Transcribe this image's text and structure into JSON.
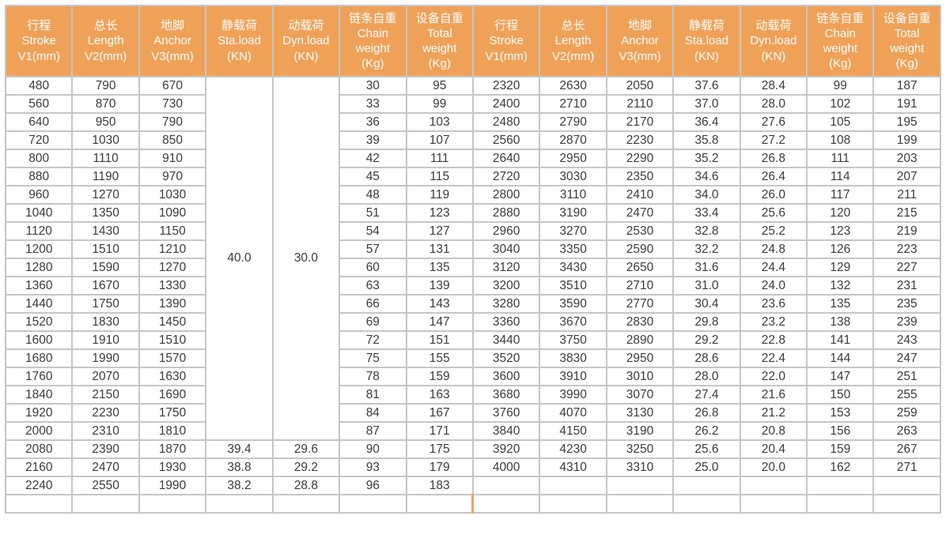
{
  "table": {
    "header_columns": [
      {
        "lines": [
          "行程",
          "Stroke",
          "V1(mm)"
        ]
      },
      {
        "lines": [
          "总长",
          "Length",
          "V2(mm)"
        ]
      },
      {
        "lines": [
          "地脚",
          "Anchor",
          "V3(mm)"
        ]
      },
      {
        "lines": [
          "静载荷",
          "Sta.load",
          "(KN)"
        ]
      },
      {
        "lines": [
          "动载荷",
          "Dyn.load",
          "(KN)"
        ]
      },
      {
        "lines": [
          "链条自重",
          "Chain",
          "weight",
          "(Kg)"
        ]
      },
      {
        "lines": [
          "设备自重",
          "Total",
          "weight",
          "(Kg)"
        ]
      }
    ],
    "header_repeated_twice": true,
    "left_half": {
      "merged_sta_load": "40.0",
      "merged_dyn_load": "30.0",
      "merged_rowspan": 20,
      "rows": [
        [
          "480",
          "790",
          "670",
          null,
          null,
          "30",
          "95"
        ],
        [
          "560",
          "870",
          "730",
          null,
          null,
          "33",
          "99"
        ],
        [
          "640",
          "950",
          "790",
          null,
          null,
          "36",
          "103"
        ],
        [
          "720",
          "1030",
          "850",
          null,
          null,
          "39",
          "107"
        ],
        [
          "800",
          "1110",
          "910",
          null,
          null,
          "42",
          "111"
        ],
        [
          "880",
          "1190",
          "970",
          null,
          null,
          "45",
          "115"
        ],
        [
          "960",
          "1270",
          "1030",
          null,
          null,
          "48",
          "119"
        ],
        [
          "1040",
          "1350",
          "1090",
          null,
          null,
          "51",
          "123"
        ],
        [
          "1120",
          "1430",
          "1150",
          null,
          null,
          "54",
          "127"
        ],
        [
          "1200",
          "1510",
          "1210",
          null,
          null,
          "57",
          "131"
        ],
        [
          "1280",
          "1590",
          "1270",
          null,
          null,
          "60",
          "135"
        ],
        [
          "1360",
          "1670",
          "1330",
          null,
          null,
          "63",
          "139"
        ],
        [
          "1440",
          "1750",
          "1390",
          null,
          null,
          "66",
          "143"
        ],
        [
          "1520",
          "1830",
          "1450",
          null,
          null,
          "69",
          "147"
        ],
        [
          "1600",
          "1910",
          "1510",
          null,
          null,
          "72",
          "151"
        ],
        [
          "1680",
          "1990",
          "1570",
          null,
          null,
          "75",
          "155"
        ],
        [
          "1760",
          "2070",
          "1630",
          null,
          null,
          "78",
          "159"
        ],
        [
          "1840",
          "2150",
          "1690",
          null,
          null,
          "81",
          "163"
        ],
        [
          "1920",
          "2230",
          "1750",
          null,
          null,
          "84",
          "167"
        ],
        [
          "2000",
          "2310",
          "1810",
          null,
          null,
          "87",
          "171"
        ],
        [
          "2080",
          "2390",
          "1870",
          "39.4",
          "29.6",
          "90",
          "175"
        ],
        [
          "2160",
          "2470",
          "1930",
          "38.8",
          "29.2",
          "93",
          "179"
        ],
        [
          "2240",
          "2550",
          "1990",
          "38.2",
          "28.8",
          "96",
          "183"
        ]
      ]
    },
    "right_half": {
      "rows": [
        [
          "2320",
          "2630",
          "2050",
          "37.6",
          "28.4",
          "99",
          "187"
        ],
        [
          "2400",
          "2710",
          "2110",
          "37.0",
          "28.0",
          "102",
          "191"
        ],
        [
          "2480",
          "2790",
          "2170",
          "36.4",
          "27.6",
          "105",
          "195"
        ],
        [
          "2560",
          "2870",
          "2230",
          "35.8",
          "27.2",
          "108",
          "199"
        ],
        [
          "2640",
          "2950",
          "2290",
          "35.2",
          "26.8",
          "111",
          "203"
        ],
        [
          "2720",
          "3030",
          "2350",
          "34.6",
          "26.4",
          "114",
          "207"
        ],
        [
          "2800",
          "3110",
          "2410",
          "34.0",
          "26.0",
          "117",
          "211"
        ],
        [
          "2880",
          "3190",
          "2470",
          "33.4",
          "25.6",
          "120",
          "215"
        ],
        [
          "2960",
          "3270",
          "2530",
          "32.8",
          "25.2",
          "123",
          "219"
        ],
        [
          "3040",
          "3350",
          "2590",
          "32.2",
          "24.8",
          "126",
          "223"
        ],
        [
          "3120",
          "3430",
          "2650",
          "31.6",
          "24.4",
          "129",
          "227"
        ],
        [
          "3200",
          "3510",
          "2710",
          "31.0",
          "24.0",
          "132",
          "231"
        ],
        [
          "3280",
          "3590",
          "2770",
          "30.4",
          "23.6",
          "135",
          "235"
        ],
        [
          "3360",
          "3670",
          "2830",
          "29.8",
          "23.2",
          "138",
          "239"
        ],
        [
          "3440",
          "3750",
          "2890",
          "29.2",
          "22.8",
          "141",
          "243"
        ],
        [
          "3520",
          "3830",
          "2950",
          "28.6",
          "22.4",
          "144",
          "247"
        ],
        [
          "3600",
          "3910",
          "3010",
          "28.0",
          "22.0",
          "147",
          "251"
        ],
        [
          "3680",
          "3990",
          "3070",
          "27.4",
          "21.6",
          "150",
          "255"
        ],
        [
          "3760",
          "4070",
          "3130",
          "26.8",
          "21.2",
          "153",
          "259"
        ],
        [
          "3840",
          "4150",
          "3190",
          "26.2",
          "20.8",
          "156",
          "263"
        ],
        [
          "3920",
          "4230",
          "3250",
          "25.6",
          "20.4",
          "159",
          "267"
        ],
        [
          "4000",
          "4310",
          "3310",
          "25.0",
          "20.0",
          "162",
          "271"
        ],
        [
          "",
          "",
          "",
          "",
          "",
          "",
          ""
        ]
      ]
    }
  },
  "colors": {
    "header_bg": "#f0a158",
    "header_text": "#ffffff",
    "grid_border": "#c6c6c6",
    "body_text": "#3b3b3b",
    "half_divider": "#f0a158",
    "page_bg": "#ffffff"
  }
}
